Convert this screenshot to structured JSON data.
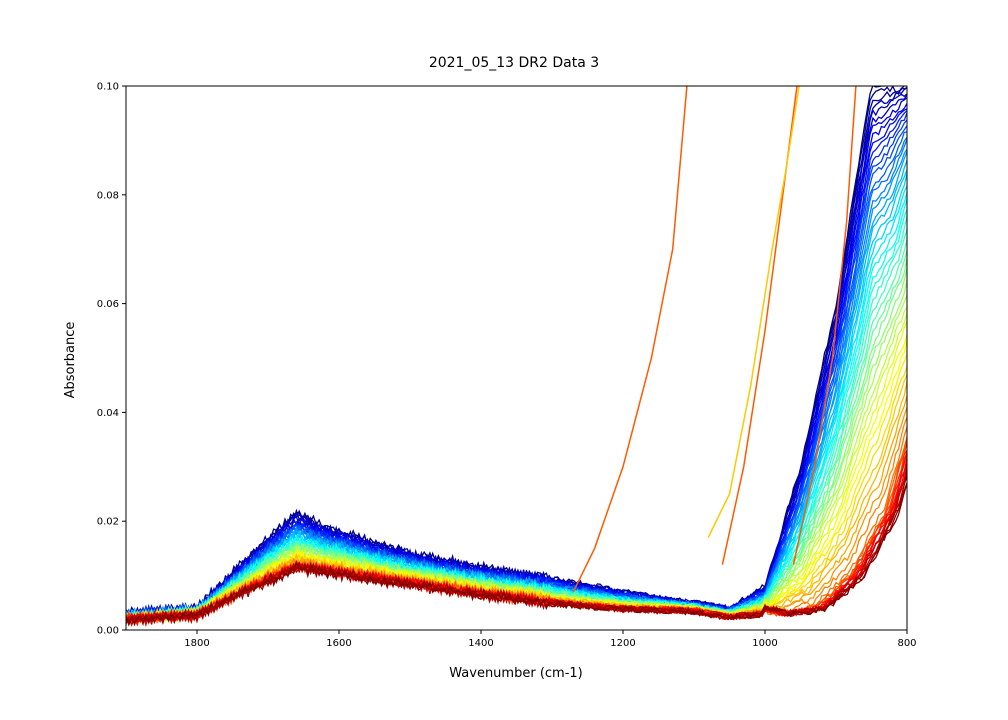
{
  "chart_data": {
    "type": "line",
    "title": "2021_05_13 DR2 Data 3",
    "xlabel": "Wavenumber (cm-1)",
    "ylabel": "Absorbance",
    "xlim": [
      1900,
      800
    ],
    "ylim": [
      0,
      0.1
    ],
    "x_reversed": true,
    "xticks": [
      1800,
      1600,
      1400,
      1200,
      1000,
      800
    ],
    "xtick_labels": [
      "1800",
      "1600",
      "1400",
      "1200",
      "1000",
      "800"
    ],
    "yticks": [
      0.0,
      0.02,
      0.04,
      0.06,
      0.08,
      0.1
    ],
    "ytick_labels": [
      "0.00",
      "0.02",
      "0.04",
      "0.06",
      "0.08",
      "0.10"
    ],
    "grid": false,
    "legend": "none",
    "colormap": "jet",
    "colormap_stops": [
      "#00007f",
      "#0000ff",
      "#007fff",
      "#00ffff",
      "#7fff7f",
      "#ffff00",
      "#ff7f00",
      "#ff0000",
      "#7f0000"
    ],
    "representative_series": [
      {
        "x": [
          1900,
          1800,
          1700,
          1660,
          1620,
          1500,
          1400,
          1300,
          1200,
          1100,
          1050,
          1000,
          950,
          900,
          850,
          800
        ],
        "y": [
          0.003,
          0.004,
          0.017,
          0.0215,
          0.019,
          0.014,
          0.0115,
          0.0095,
          0.007,
          0.005,
          0.004,
          0.008,
          0.03,
          0.06,
          0.1,
          0.1
        ]
      },
      {
        "x": [
          1900,
          1800,
          1700,
          1660,
          1620,
          1500,
          1400,
          1300,
          1200,
          1100,
          1050,
          1000,
          950,
          900,
          850,
          800
        ],
        "y": [
          0.0025,
          0.0035,
          0.012,
          0.015,
          0.014,
          0.011,
          0.0085,
          0.0065,
          0.005,
          0.0045,
          0.003,
          0.004,
          0.01,
          0.022,
          0.045,
          0.09
        ]
      }
    ],
    "outlier_series": [
      {
        "x": [
          1270,
          1240,
          1200,
          1160,
          1130,
          1110
        ],
        "y": [
          0.007,
          0.015,
          0.03,
          0.05,
          0.07,
          0.1
        ]
      },
      {
        "x": [
          1060,
          1030,
          1000,
          975,
          955
        ],
        "y": [
          0.012,
          0.03,
          0.055,
          0.08,
          0.1
        ]
      },
      {
        "x": [
          1080,
          1050,
          1020,
          990,
          970,
          952
        ],
        "y": [
          0.017,
          0.025,
          0.045,
          0.07,
          0.085,
          0.1
        ]
      },
      {
        "x": [
          960,
          930,
          905,
          885,
          872
        ],
        "y": [
          0.012,
          0.03,
          0.05,
          0.075,
          0.1
        ]
      }
    ],
    "series_count_approx": 60
  }
}
